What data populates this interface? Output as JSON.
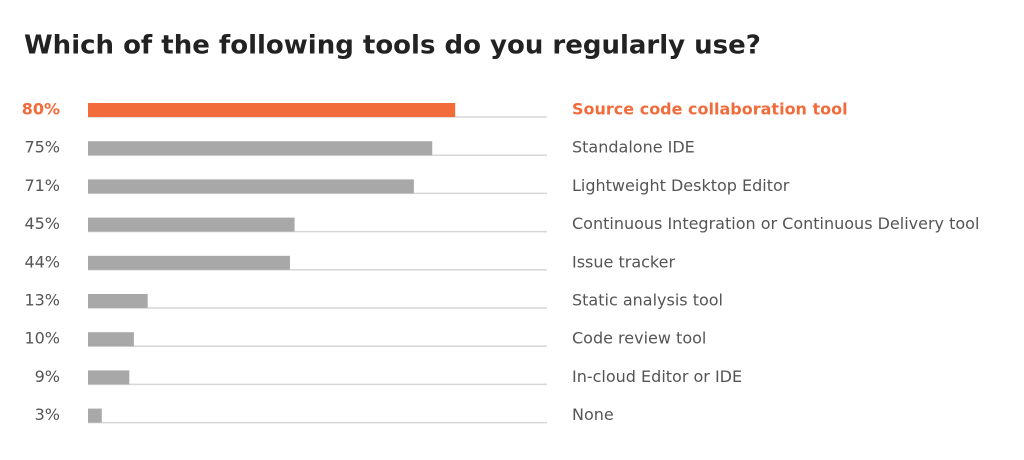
{
  "chart_data": {
    "type": "hbar",
    "title": "Which of the following tools do you regularly use?",
    "categories": [
      "Source code collaboration tool",
      "Standalone IDE",
      "Lightweight Desktop Editor",
      "Continuous Integration or Continuous Delivery tool",
      "Issue tracker",
      "Static analysis tool",
      "Code review tool",
      "In-cloud Editor or IDE",
      "None"
    ],
    "values": [
      80,
      75,
      71,
      45,
      44,
      13,
      10,
      9,
      3
    ],
    "value_labels": [
      "80%",
      "75%",
      "71%",
      "45%",
      "44%",
      "13%",
      "10%",
      "9%",
      "3%"
    ],
    "colors": [
      "#f26b3a",
      "#a8a8a8",
      "#a8a8a8",
      "#a8a8a8",
      "#a8a8a8",
      "#a8a8a8",
      "#a8a8a8",
      "#a8a8a8",
      "#a8a8a8"
    ],
    "xlim": [
      0,
      100
    ]
  }
}
